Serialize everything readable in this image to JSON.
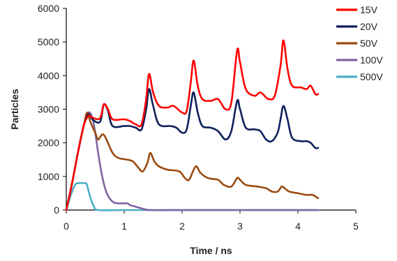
{
  "chart_data": {
    "type": "line",
    "title": "",
    "xlabel": "Time / ns",
    "ylabel": "Particles",
    "xlim": [
      0,
      5
    ],
    "ylim": [
      0,
      6000
    ],
    "x_ticks": [
      0,
      1,
      2,
      3,
      4,
      5
    ],
    "y_ticks": [
      0,
      1000,
      2000,
      3000,
      4000,
      5000,
      6000
    ],
    "x_tick_labels": [
      "0",
      "1",
      "2",
      "3",
      "4",
      "5"
    ],
    "y_tick_labels": [
      "0",
      "1000",
      "2000",
      "3000",
      "4000",
      "5000",
      "6000"
    ],
    "grid": false,
    "legend_position": "right",
    "series": [
      {
        "name": "15V",
        "color": "#ff0000",
        "points": [
          [
            0,
            0
          ],
          [
            0.1,
            800
          ],
          [
            0.2,
            1700
          ],
          [
            0.3,
            2500
          ],
          [
            0.38,
            2800
          ],
          [
            0.45,
            2750
          ],
          [
            0.55,
            2700
          ],
          [
            0.6,
            2800
          ],
          [
            0.65,
            3150
          ],
          [
            0.72,
            3000
          ],
          [
            0.8,
            2700
          ],
          [
            1.0,
            2700
          ],
          [
            1.1,
            2650
          ],
          [
            1.2,
            2550
          ],
          [
            1.3,
            2550
          ],
          [
            1.38,
            3300
          ],
          [
            1.43,
            4050
          ],
          [
            1.5,
            3500
          ],
          [
            1.6,
            3100
          ],
          [
            1.75,
            3050
          ],
          [
            1.85,
            3100
          ],
          [
            2.0,
            2900
          ],
          [
            2.08,
            2950
          ],
          [
            2.15,
            3800
          ],
          [
            2.2,
            4450
          ],
          [
            2.27,
            3700
          ],
          [
            2.35,
            3300
          ],
          [
            2.5,
            3250
          ],
          [
            2.62,
            3300
          ],
          [
            2.75,
            3000
          ],
          [
            2.85,
            3200
          ],
          [
            2.95,
            4750
          ],
          [
            3.0,
            4400
          ],
          [
            3.1,
            3600
          ],
          [
            3.25,
            3400
          ],
          [
            3.35,
            3500
          ],
          [
            3.45,
            3350
          ],
          [
            3.5,
            3300
          ],
          [
            3.6,
            3400
          ],
          [
            3.7,
            4300
          ],
          [
            3.75,
            5050
          ],
          [
            3.82,
            4200
          ],
          [
            3.9,
            3700
          ],
          [
            4.05,
            3650
          ],
          [
            4.15,
            3600
          ],
          [
            4.22,
            3700
          ],
          [
            4.3,
            3450
          ],
          [
            4.35,
            3450
          ]
        ]
      },
      {
        "name": "20V",
        "color": "#0d1f5c",
        "points": [
          [
            0,
            0
          ],
          [
            0.1,
            800
          ],
          [
            0.2,
            1700
          ],
          [
            0.3,
            2500
          ],
          [
            0.38,
            2850
          ],
          [
            0.45,
            2700
          ],
          [
            0.55,
            2600
          ],
          [
            0.6,
            2700
          ],
          [
            0.65,
            3150
          ],
          [
            0.72,
            2950
          ],
          [
            0.8,
            2500
          ],
          [
            1.0,
            2500
          ],
          [
            1.1,
            2500
          ],
          [
            1.2,
            2450
          ],
          [
            1.3,
            2400
          ],
          [
            1.38,
            3000
          ],
          [
            1.43,
            3600
          ],
          [
            1.5,
            3100
          ],
          [
            1.6,
            2550
          ],
          [
            1.8,
            2500
          ],
          [
            1.9,
            2450
          ],
          [
            2.0,
            2300
          ],
          [
            2.08,
            2400
          ],
          [
            2.15,
            3100
          ],
          [
            2.2,
            3500
          ],
          [
            2.27,
            2900
          ],
          [
            2.35,
            2500
          ],
          [
            2.5,
            2450
          ],
          [
            2.62,
            2350
          ],
          [
            2.75,
            2100
          ],
          [
            2.85,
            2350
          ],
          [
            2.95,
            3250
          ],
          [
            3.0,
            3000
          ],
          [
            3.1,
            2450
          ],
          [
            3.25,
            2400
          ],
          [
            3.35,
            2350
          ],
          [
            3.45,
            2100
          ],
          [
            3.55,
            2050
          ],
          [
            3.65,
            2300
          ],
          [
            3.7,
            2700
          ],
          [
            3.75,
            3100
          ],
          [
            3.82,
            2700
          ],
          [
            3.9,
            2150
          ],
          [
            4.05,
            2050
          ],
          [
            4.15,
            2050
          ],
          [
            4.22,
            2000
          ],
          [
            4.3,
            1850
          ],
          [
            4.35,
            1850
          ]
        ]
      },
      {
        "name": "50V",
        "color": "#9b4a0f",
        "points": [
          [
            0,
            0
          ],
          [
            0.1,
            800
          ],
          [
            0.2,
            1700
          ],
          [
            0.3,
            2500
          ],
          [
            0.36,
            2900
          ],
          [
            0.42,
            2600
          ],
          [
            0.5,
            2300
          ],
          [
            0.55,
            2100
          ],
          [
            0.62,
            2250
          ],
          [
            0.68,
            2150
          ],
          [
            0.8,
            1700
          ],
          [
            0.9,
            1550
          ],
          [
            1.05,
            1500
          ],
          [
            1.15,
            1450
          ],
          [
            1.25,
            1250
          ],
          [
            1.32,
            1150
          ],
          [
            1.4,
            1400
          ],
          [
            1.45,
            1700
          ],
          [
            1.52,
            1450
          ],
          [
            1.6,
            1300
          ],
          [
            1.75,
            1200
          ],
          [
            1.95,
            1150
          ],
          [
            2.05,
            950
          ],
          [
            2.12,
            900
          ],
          [
            2.2,
            1200
          ],
          [
            2.25,
            1300
          ],
          [
            2.32,
            1100
          ],
          [
            2.45,
            950
          ],
          [
            2.62,
            900
          ],
          [
            2.72,
            750
          ],
          [
            2.85,
            700
          ],
          [
            2.95,
            950
          ],
          [
            3.0,
            900
          ],
          [
            3.1,
            750
          ],
          [
            3.3,
            700
          ],
          [
            3.45,
            650
          ],
          [
            3.55,
            550
          ],
          [
            3.65,
            550
          ],
          [
            3.72,
            700
          ],
          [
            3.77,
            650
          ],
          [
            3.85,
            550
          ],
          [
            4.0,
            500
          ],
          [
            4.15,
            450
          ],
          [
            4.25,
            450
          ],
          [
            4.35,
            350
          ]
        ]
      },
      {
        "name": "100V",
        "color": "#8064a2",
        "points": [
          [
            0,
            0
          ],
          [
            0.1,
            800
          ],
          [
            0.2,
            1700
          ],
          [
            0.3,
            2500
          ],
          [
            0.38,
            2900
          ],
          [
            0.45,
            2750
          ],
          [
            0.5,
            2300
          ],
          [
            0.55,
            1700
          ],
          [
            0.62,
            1000
          ],
          [
            0.7,
            500
          ],
          [
            0.8,
            250
          ],
          [
            0.9,
            200
          ],
          [
            1.05,
            200
          ],
          [
            1.1,
            150
          ],
          [
            1.2,
            100
          ],
          [
            1.3,
            50
          ],
          [
            1.45,
            0
          ],
          [
            2.0,
            0
          ],
          [
            3.0,
            0
          ],
          [
            4.0,
            0
          ],
          [
            4.35,
            0
          ]
        ]
      },
      {
        "name": "500V",
        "color": "#4bacc6",
        "points": [
          [
            0,
            0
          ],
          [
            0.05,
            300
          ],
          [
            0.1,
            550
          ],
          [
            0.15,
            750
          ],
          [
            0.2,
            800
          ],
          [
            0.3,
            800
          ],
          [
            0.35,
            780
          ],
          [
            0.38,
            600
          ],
          [
            0.42,
            350
          ],
          [
            0.48,
            100
          ],
          [
            0.55,
            0
          ],
          [
            1.0,
            0
          ],
          [
            2.0,
            0
          ],
          [
            3.0,
            0
          ],
          [
            4.0,
            0
          ],
          [
            4.35,
            0
          ]
        ]
      }
    ]
  }
}
